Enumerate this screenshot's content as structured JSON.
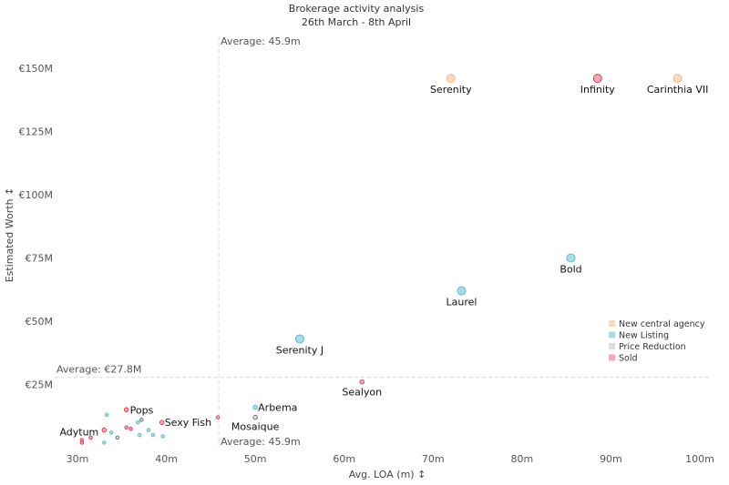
{
  "chart_data": {
    "type": "scatter",
    "title": "Brokerage activity analysis",
    "subtitle": "26th March - 8th April",
    "xlabel": "Avg. LOA (m) ↕",
    "ylabel": "Estimated Worth ↕",
    "xlim": [
      28,
      102
    ],
    "ylim": [
      0,
      155
    ],
    "x_ticks": [
      30,
      40,
      50,
      60,
      70,
      80,
      90,
      100
    ],
    "x_tick_labels": [
      "30m",
      "40m",
      "50m",
      "60m",
      "70m",
      "80m",
      "90m",
      "100m"
    ],
    "y_ticks": [
      25,
      50,
      75,
      100,
      125,
      150
    ],
    "y_tick_labels": [
      "€25M",
      "€50M",
      "€75M",
      "€100M",
      "€125M",
      "€150M"
    ],
    "grid": false,
    "legend_position": "right",
    "reference_lines": [
      {
        "axis": "x",
        "value": 45.9,
        "label_top": "Average: 45.9m",
        "label_bottom": "Average: 45.9m"
      },
      {
        "axis": "y",
        "value": 27.8,
        "label": "Average: €27.8M"
      }
    ],
    "series": [
      {
        "name": "New central agency",
        "color": "#fbd9bd",
        "stroke": "#f2b98a",
        "points": [
          {
            "x": 72.0,
            "y": 146,
            "label": "Serenity"
          },
          {
            "x": 97.5,
            "y": 146,
            "label": "Carinthia VII"
          }
        ]
      },
      {
        "name": "New Listing",
        "color": "#a9dbe8",
        "stroke": "#5fb8cf",
        "points": [
          {
            "x": 85.5,
            "y": 75,
            "label": "Bold"
          },
          {
            "x": 73.2,
            "y": 62,
            "label": "Laurel"
          },
          {
            "x": 55.0,
            "y": 43,
            "label": "Serenity J"
          },
          {
            "x": 50.0,
            "y": 16,
            "label": "Arbema"
          },
          {
            "x": 33.3,
            "y": 13,
            "label": ""
          },
          {
            "x": 36.8,
            "y": 10,
            "label": ""
          },
          {
            "x": 38.0,
            "y": 7,
            "label": ""
          },
          {
            "x": 33.8,
            "y": 6,
            "label": ""
          },
          {
            "x": 37.0,
            "y": 5,
            "label": ""
          },
          {
            "x": 38.5,
            "y": 5,
            "label": ""
          },
          {
            "x": 39.6,
            "y": 4.5,
            "label": ""
          },
          {
            "x": 33.0,
            "y": 2,
            "label": ""
          }
        ]
      },
      {
        "name": "Price Reduction",
        "color": "#dddddd",
        "stroke": "#666666",
        "points": [
          {
            "x": 50.0,
            "y": 12,
            "label": "Mosaique"
          },
          {
            "x": 37.2,
            "y": 11,
            "label": ""
          },
          {
            "x": 34.5,
            "y": 4,
            "label": ""
          }
        ]
      },
      {
        "name": "Sold",
        "color": "#f7a8ae",
        "stroke": "#e23b4c",
        "points": [
          {
            "x": 88.5,
            "y": 146,
            "label": "Infinity"
          },
          {
            "x": 62.0,
            "y": 26,
            "label": "Sealyon"
          },
          {
            "x": 35.5,
            "y": 15,
            "label": "Pops"
          },
          {
            "x": 45.8,
            "y": 12,
            "label": ""
          },
          {
            "x": 39.5,
            "y": 10,
            "label": "Sexy Fish"
          },
          {
            "x": 33.0,
            "y": 7,
            "label": "Adytum"
          },
          {
            "x": 35.5,
            "y": 8,
            "label": ""
          },
          {
            "x": 36.0,
            "y": 7.5,
            "label": ""
          },
          {
            "x": 31.5,
            "y": 4,
            "label": ""
          },
          {
            "x": 30.5,
            "y": 3,
            "label": ""
          },
          {
            "x": 30.5,
            "y": 2,
            "label": ""
          }
        ]
      }
    ]
  }
}
